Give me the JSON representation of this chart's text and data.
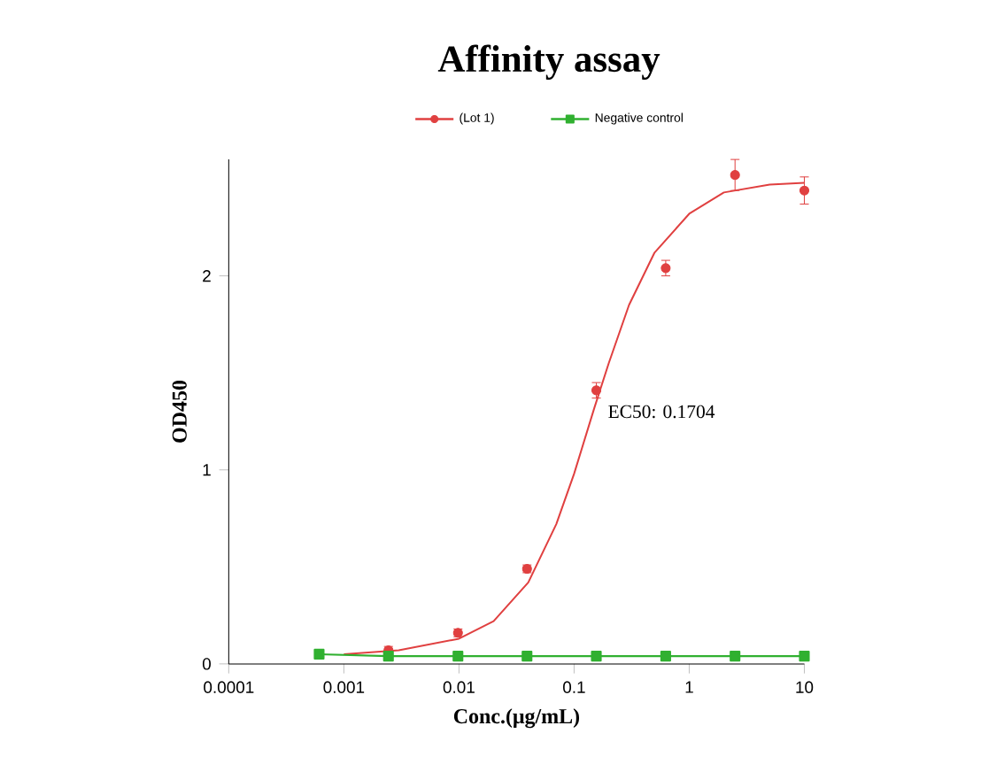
{
  "chart_data": {
    "type": "line",
    "title": "Affinity assay",
    "xlabel": "Conc.(μg/mL)",
    "ylabel": "OD450",
    "log": "x",
    "xlim": [
      0.0001,
      10
    ],
    "ylim": [
      0,
      2.6
    ],
    "xticks": [
      0.0001,
      0.001,
      0.01,
      0.1,
      1,
      10
    ],
    "yticks": [
      0,
      1,
      2
    ],
    "legend": "top",
    "grid": false,
    "line_style": "solid",
    "annotations": [
      "EC50: 0.1704"
    ],
    "series": [
      {
        "name": "(Lot 1)",
        "color": "#e04040",
        "type": "scatter",
        "marker": "circle",
        "x": [
          0.00244,
          0.0098,
          0.039,
          0.156,
          0.625,
          2.5,
          10
        ],
        "values": [
          0.07,
          0.16,
          0.49,
          1.41,
          2.04,
          2.52,
          2.44
        ],
        "errors": [
          0.02,
          0.02,
          0.02,
          0.04,
          0.04,
          0.08,
          0.07
        ]
      },
      {
        "color": "#e04040",
        "type": "line",
        "marker": "none",
        "x": [
          0.001,
          0.003,
          0.01,
          0.02,
          0.04,
          0.07,
          0.1,
          0.15,
          0.2,
          0.3,
          0.5,
          1,
          2,
          5,
          10
        ],
        "values": [
          0.05,
          0.07,
          0.13,
          0.22,
          0.42,
          0.72,
          0.98,
          1.32,
          1.55,
          1.85,
          2.12,
          2.32,
          2.43,
          2.47,
          2.48
        ]
      },
      {
        "name": "Negative control",
        "color": "#30b030",
        "marker": "square",
        "x": [
          0.00061,
          0.00244,
          0.0098,
          0.039,
          0.156,
          0.625,
          2.5,
          10
        ],
        "values": [
          0.05,
          0.04,
          0.04,
          0.04,
          0.04,
          0.04,
          0.04,
          0.04
        ]
      }
    ]
  }
}
